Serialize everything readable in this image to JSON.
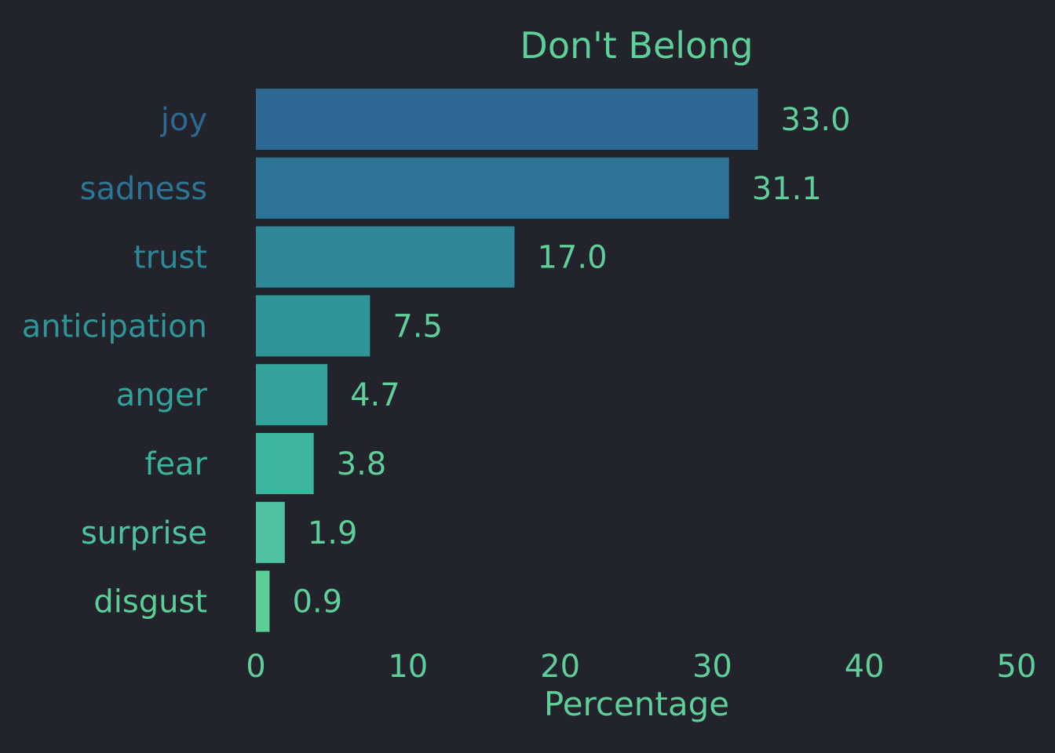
{
  "chart_data": {
    "type": "bar",
    "orientation": "horizontal",
    "title": "Don't Belong",
    "xlabel": "Percentage",
    "ylabel": "",
    "xlim": [
      0,
      50
    ],
    "xticks": [
      0,
      10,
      20,
      30,
      40,
      50
    ],
    "grid": false,
    "legend": "none",
    "categories": [
      "joy",
      "sadness",
      "trust",
      "anticipation",
      "anger",
      "fear",
      "surprise",
      "disgust"
    ],
    "values": [
      33.0,
      31.1,
      17.0,
      7.5,
      4.7,
      3.8,
      1.9,
      0.9
    ],
    "value_labels": [
      "33.0",
      "31.1",
      "17.0",
      "7.5",
      "4.7",
      "3.8",
      "1.9",
      "0.9"
    ],
    "bar_colors": [
      "#2d6893",
      "#2c7597",
      "#2e8797",
      "#2f9599",
      "#32a29b",
      "#3db49c",
      "#4fc39f",
      "#5ccf98"
    ],
    "text_color": "#5fcf9a",
    "background": "#23242b"
  }
}
